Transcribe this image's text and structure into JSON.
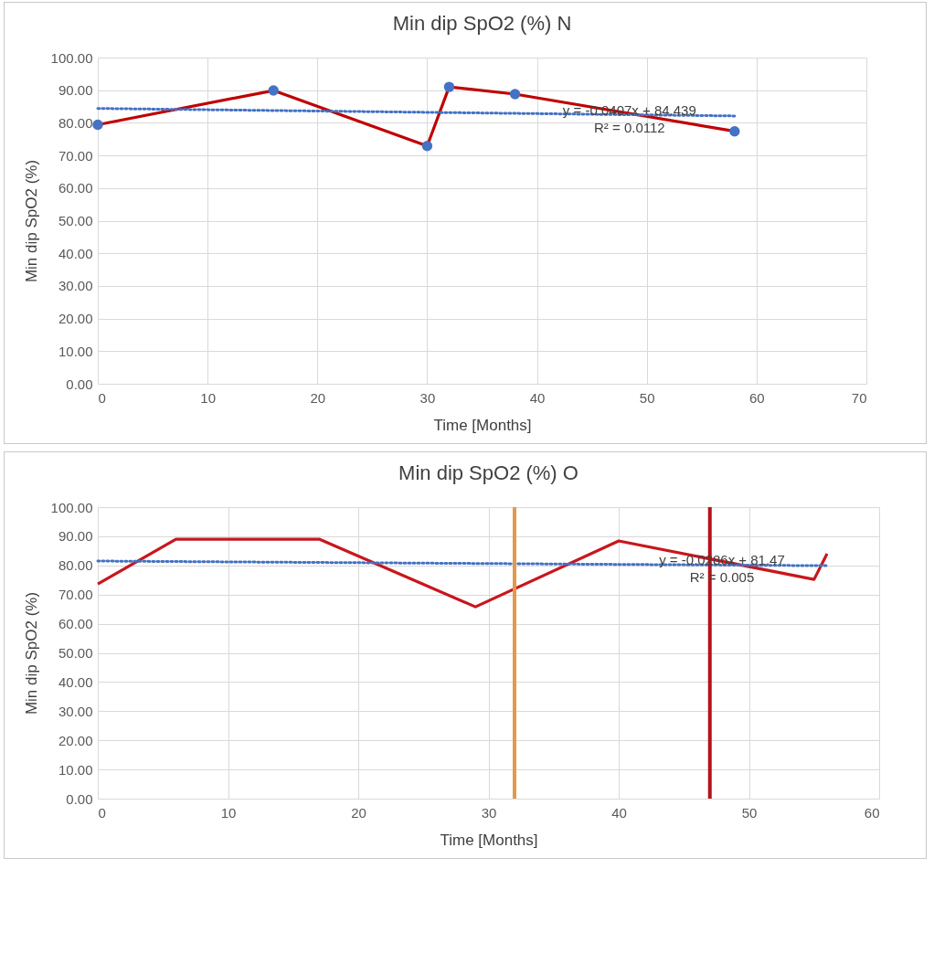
{
  "chart_data": [
    {
      "type": "line",
      "title": "Min dip SpO2 (%)  N",
      "xlabel": "Time [Months]",
      "ylabel": "Min dip SpO2 (%)",
      "x": [
        0,
        16,
        30,
        32,
        38,
        58
      ],
      "series": [
        {
          "color": "#c00000",
          "colors": [
            "#4472c4",
            "#4472c4",
            "#4472c4",
            "#4472c4",
            "#4472c4",
            "#4472c4"
          ],
          "marker": "circle",
          "line_style": "solid",
          "values": [
            79.4,
            89.9,
            72.9,
            91,
            88.8,
            77.4
          ]
        },
        {
          "type": "line",
          "color": "#4472c4",
          "line_style": "dotted",
          "marker": "none",
          "x": [
            0,
            58
          ],
          "values": [
            84.4,
            82.1
          ]
        }
      ],
      "xlim": [
        0,
        70
      ],
      "xticks": [
        0,
        10,
        20,
        30,
        40,
        50,
        60,
        70
      ],
      "ylim": [
        0,
        100
      ],
      "yticks": [
        {
          "value": 0,
          "label": "0.00"
        },
        {
          "value": 10,
          "label": "10.00"
        },
        {
          "value": 20,
          "label": "20.00"
        },
        {
          "value": 30,
          "label": "30.00"
        },
        {
          "value": 40,
          "label": "40.00"
        },
        {
          "value": 50,
          "label": "50.00"
        },
        {
          "value": 60,
          "label": "60.00"
        },
        {
          "value": 70,
          "label": "70.00"
        },
        {
          "value": 80,
          "label": "80.00"
        },
        {
          "value": 90,
          "label": "90.00"
        },
        {
          "value": 100,
          "label": "100.00"
        }
      ],
      "annotations": [
        "y = -0.0407x + 84.439",
        "R² = 0.0112"
      ],
      "grid": true
    },
    {
      "type": "line",
      "title": "Min dip SpO2 (%) O",
      "xlabel": "Time [Months]",
      "ylabel": "Min dip SpO2 (%)",
      "x": [
        0,
        6,
        17,
        29,
        40,
        55,
        56
      ],
      "series": [
        {
          "color": "#c8161d",
          "marker": "none",
          "line_style": "solid",
          "values": [
            73.6,
            89,
            89,
            65.8,
            88.4,
            75.2,
            84
          ]
        },
        {
          "type": "line",
          "color": "#4472c4",
          "line_style": "dotted",
          "marker": "none",
          "x": [
            0,
            56
          ],
          "values": [
            81.5,
            79.9
          ]
        }
      ],
      "xlim": [
        0,
        60
      ],
      "xticks": [
        0,
        10,
        20,
        30,
        40,
        50,
        60
      ],
      "ylim": [
        0,
        100
      ],
      "yticks": [
        {
          "value": 0,
          "label": "0.00"
        },
        {
          "value": 10,
          "label": "10.00"
        },
        {
          "value": 20,
          "label": "20.00"
        },
        {
          "value": 30,
          "label": "30.00"
        },
        {
          "value": 40,
          "label": "40.00"
        },
        {
          "value": 50,
          "label": "50.00"
        },
        {
          "value": 60,
          "label": "60.00"
        },
        {
          "value": 70,
          "label": "70.00"
        },
        {
          "value": 80,
          "label": "80.00"
        },
        {
          "value": 90,
          "label": "90.00"
        },
        {
          "value": 100,
          "label": "100.00"
        }
      ],
      "ref_lines": [
        {
          "axis": "x",
          "value": 32,
          "color": "#e29a4a"
        },
        {
          "axis": "x",
          "value": 47,
          "color": "#b5121b"
        }
      ],
      "annotations": [
        "y = -0.0286x + 81.47",
        "R² = 0.005"
      ],
      "grid": true
    }
  ]
}
